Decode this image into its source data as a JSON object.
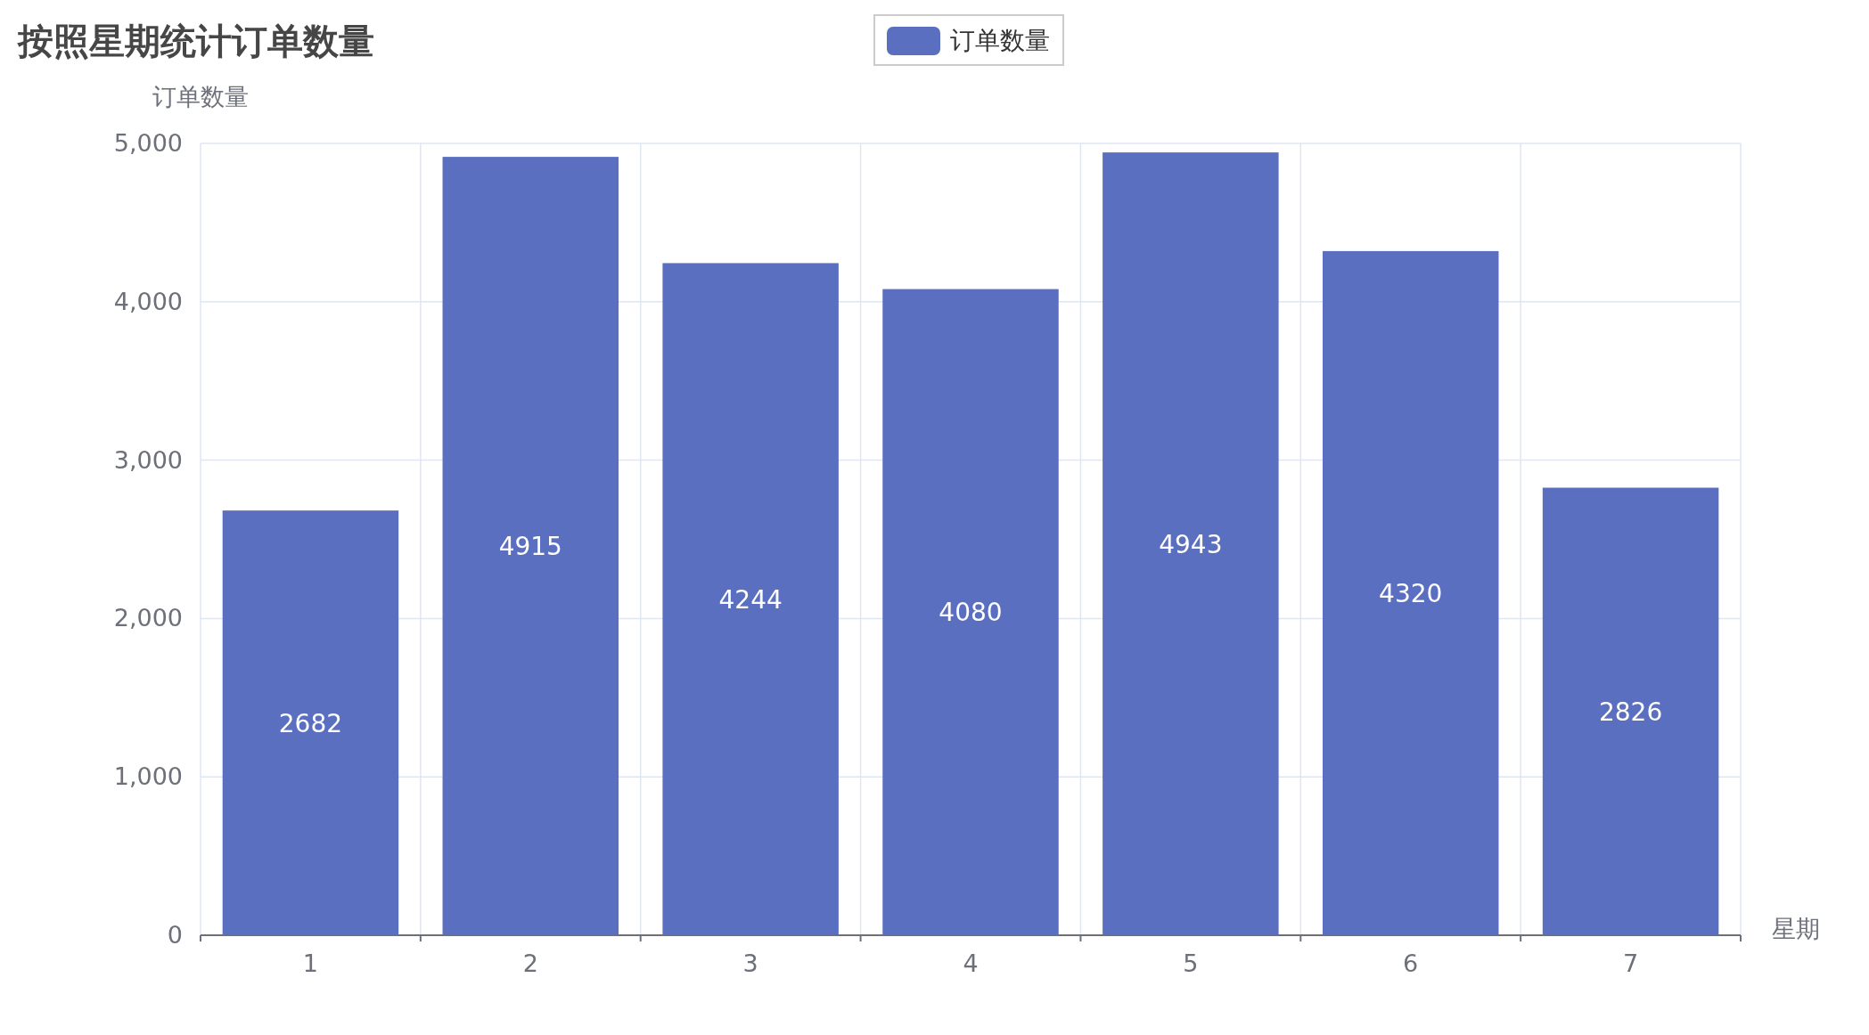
{
  "chart_data": {
    "type": "bar",
    "title": "按照星期统计订单数量",
    "xlabel": "星期",
    "ylabel": "订单数量",
    "categories": [
      "1",
      "2",
      "3",
      "4",
      "5",
      "6",
      "7"
    ],
    "series": [
      {
        "name": "订单数量",
        "color": "#5a6fc0",
        "values": [
          2682,
          4915,
          4244,
          4080,
          4943,
          4320,
          2826
        ]
      }
    ],
    "ylim": [
      0,
      5000
    ],
    "yticks": [
      0,
      {
        "value": 1000,
        "label": "1,000"
      },
      {
        "value": 2000,
        "label": "2,000"
      },
      {
        "value": 3000,
        "label": "3,000"
      },
      {
        "value": 4000,
        "label": "4,000"
      },
      {
        "value": 5000,
        "label": "5,000"
      }
    ],
    "data_labels": true,
    "grid": true,
    "legend": "top"
  }
}
